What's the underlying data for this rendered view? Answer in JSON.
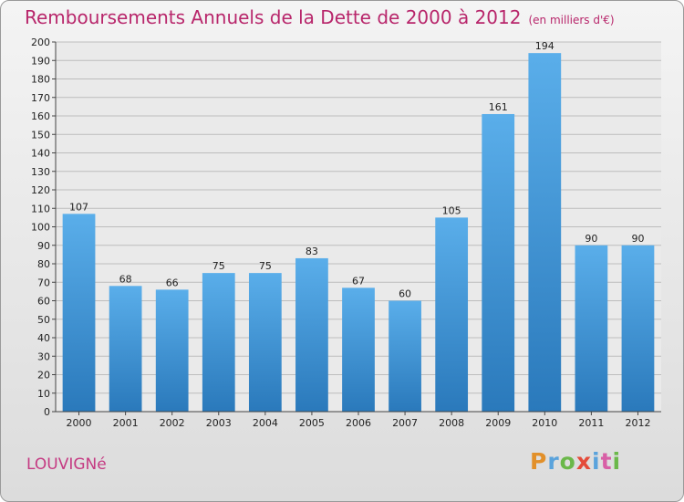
{
  "header": {
    "title": "Remboursements Annuels de la Dette de 2000 à 2012",
    "unit": "(en milliers d'€)"
  },
  "place_name": "LOUVIGNé",
  "logo": {
    "letters": [
      "P",
      "r",
      "o",
      "x",
      "i",
      "t",
      "i"
    ]
  },
  "chart_data": {
    "type": "bar",
    "title": "Remboursements Annuels de la Dette de 2000 à 2012",
    "subtitle": "(en milliers d'€)",
    "xlabel": "",
    "ylabel": "",
    "categories": [
      "2000",
      "2001",
      "2002",
      "2003",
      "2004",
      "2005",
      "2006",
      "2007",
      "2008",
      "2009",
      "2010",
      "2011",
      "2012"
    ],
    "values": [
      107,
      68,
      66,
      75,
      75,
      83,
      67,
      60,
      105,
      161,
      194,
      90,
      90
    ],
    "ylim": [
      0,
      200
    ],
    "yticks": [
      0,
      10,
      20,
      30,
      40,
      50,
      60,
      70,
      80,
      90,
      100,
      110,
      120,
      130,
      140,
      150,
      160,
      170,
      180,
      190,
      200
    ],
    "grid": true,
    "legend": "none",
    "bar_color_top": "#5aaeea",
    "bar_color_bottom": "#2a79bb"
  }
}
